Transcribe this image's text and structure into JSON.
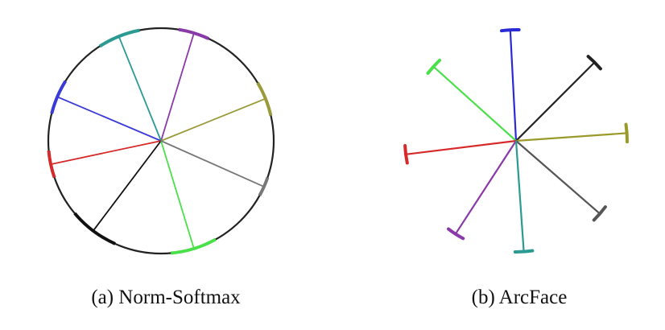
{
  "panels": [
    {
      "caption": "(a) Norm-Softmax",
      "classes": [
        {
          "color": "#3a3ad6",
          "angle_deg": 157
        },
        {
          "color": "#8a3aa8",
          "angle_deg": 73
        },
        {
          "color": "#2a9a92",
          "angle_deg": 112
        },
        {
          "color": "#9a9a3a",
          "angle_deg": 22
        },
        {
          "color": "#d62a2a",
          "angle_deg": 192
        },
        {
          "color": "#111111",
          "angle_deg": 233
        },
        {
          "color": "#4ae04a",
          "angle_deg": 287
        },
        {
          "color": "#777777",
          "angle_deg": 336
        }
      ],
      "arc_spread_deg": [
        18,
        16,
        22,
        18,
        14,
        26,
        24,
        10
      ]
    },
    {
      "caption": "(b) ArcFace",
      "classes": [
        {
          "color": "#2a2ad6",
          "angle_deg": 93
        },
        {
          "color": "#4ae04a",
          "angle_deg": 138
        },
        {
          "color": "#222222",
          "angle_deg": 45
        },
        {
          "color": "#9a9a2a",
          "angle_deg": 4
        },
        {
          "color": "#d62a2a",
          "angle_deg": 187
        },
        {
          "color": "#555555",
          "angle_deg": 319
        },
        {
          "color": "#8a3aa8",
          "angle_deg": 237
        },
        {
          "color": "#2a9a92",
          "angle_deg": 274
        }
      ]
    }
  ]
}
